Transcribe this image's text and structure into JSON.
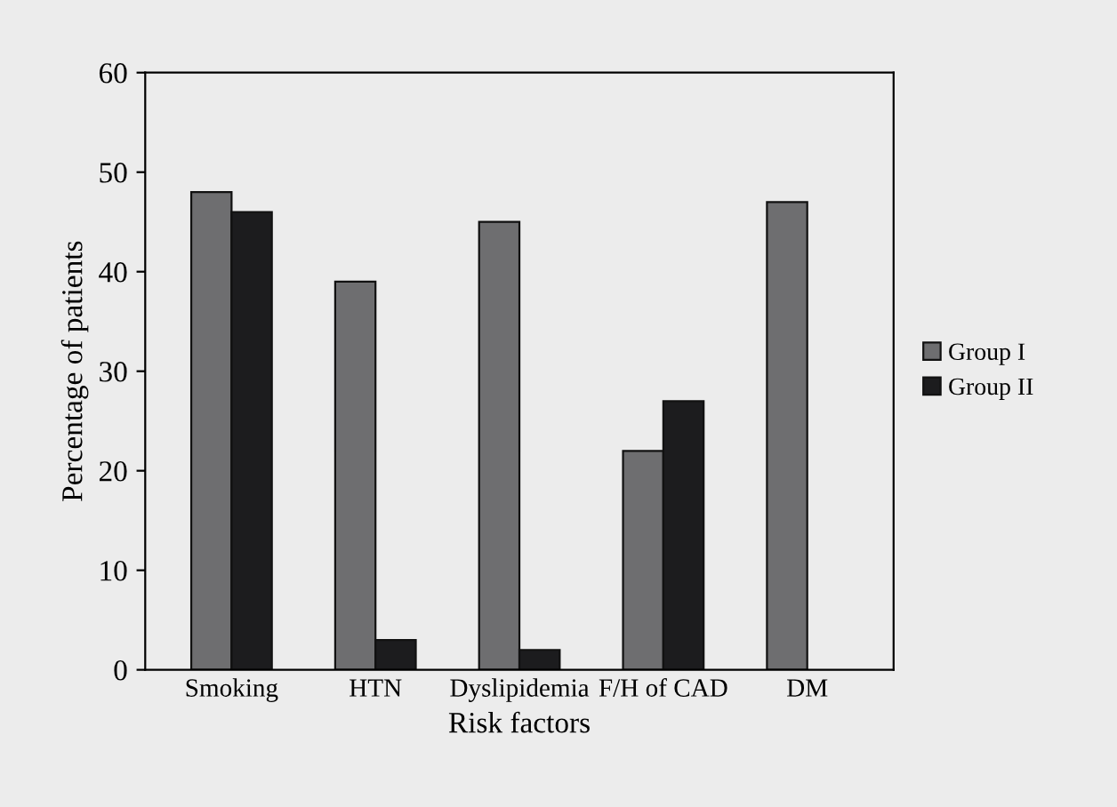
{
  "chart_data": {
    "type": "bar",
    "xlabel": "Risk factors",
    "ylabel": "Percentage of patients",
    "categories": [
      "Smoking",
      "HTN",
      "Dyslipidemia",
      "F/H of CAD",
      "DM"
    ],
    "series": [
      {
        "name": "Group I",
        "color": "#6e6e70",
        "values": [
          48,
          39,
          45,
          22,
          47
        ]
      },
      {
        "name": "Group II",
        "color": "#1c1c1e",
        "values": [
          46,
          3,
          2,
          27,
          null
        ]
      }
    ],
    "ylim": [
      0,
      60
    ],
    "yticks": [
      0,
      10,
      20,
      30,
      40,
      50,
      60
    ],
    "grid": false,
    "legend": "right"
  }
}
